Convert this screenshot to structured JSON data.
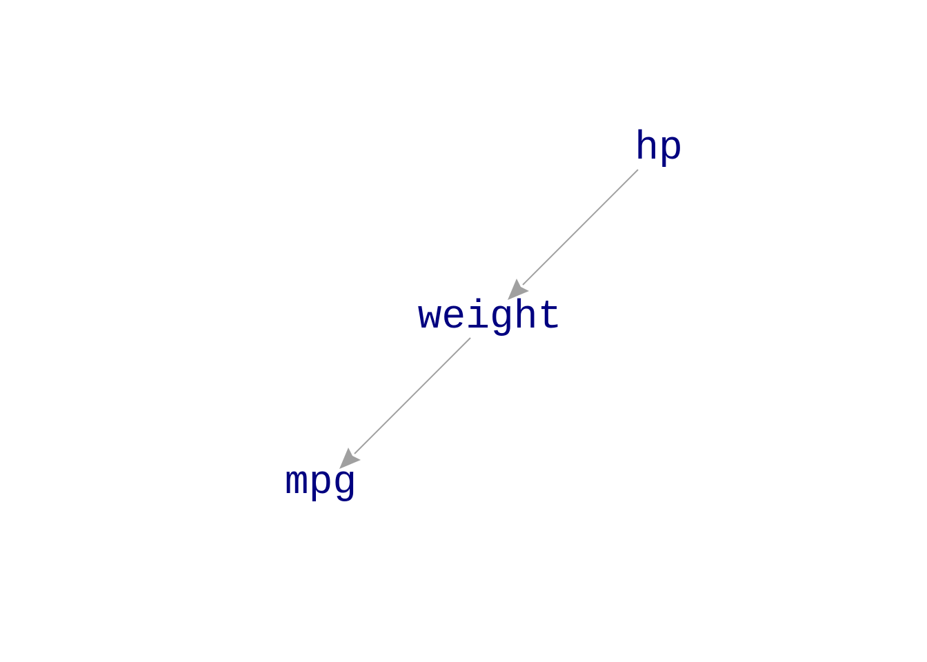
{
  "diagram": {
    "node_color": "#000080",
    "edge_color": "#a0a0a0",
    "nodes": [
      {
        "id": "hp",
        "label": "hp"
      },
      {
        "id": "weight",
        "label": "weight"
      },
      {
        "id": "mpg",
        "label": "mpg"
      }
    ],
    "edges": [
      {
        "from": "hp",
        "to": "weight",
        "directed": true
      },
      {
        "from": "weight",
        "to": "mpg",
        "directed": true
      }
    ]
  }
}
